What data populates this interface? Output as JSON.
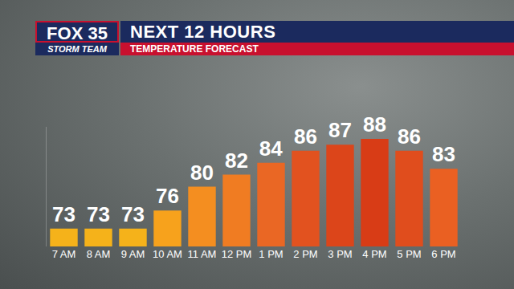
{
  "chart_data": {
    "type": "bar",
    "title": "NEXT 12 HOURS",
    "subtitle": "TEMPERATURE FORECAST",
    "annotations": [
      "FOX 35",
      "STORM TEAM"
    ],
    "categories": [
      "7 AM",
      "8 AM",
      "9 AM",
      "10 AM",
      "11 AM",
      "12 PM",
      "1 PM",
      "2 PM",
      "3 PM",
      "4 PM",
      "5 PM",
      "6 PM"
    ],
    "values": [
      73,
      73,
      73,
      76,
      80,
      82,
      84,
      86,
      87,
      88,
      86,
      83
    ],
    "colors": [
      "#f5b21a",
      "#f5b21a",
      "#f5b21a",
      "#f7a21c",
      "#f48e20",
      "#f07c22",
      "#ea6724",
      "#e2521f",
      "#dc451a",
      "#d83c16",
      "#e04d1d",
      "#ea6022"
    ],
    "ylim": [
      70,
      90
    ],
    "data_labels": true,
    "tick_labels": "x",
    "grid": false
  }
}
